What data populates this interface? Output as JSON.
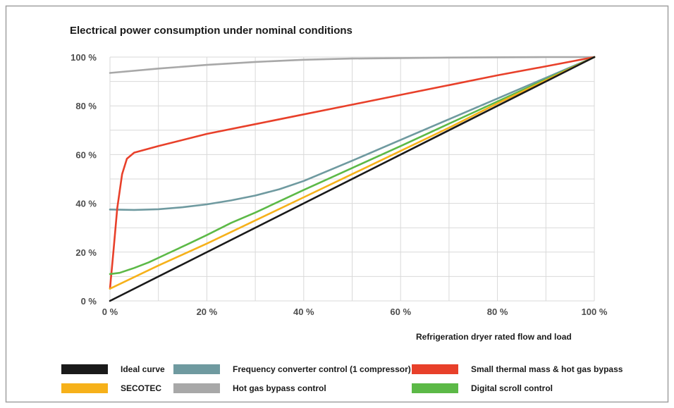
{
  "chart_data": {
    "type": "line",
    "title": "Electrical power consumption under nominal conditions",
    "xlabel": "Refrigeration dryer rated flow and load",
    "ylabel": "",
    "xlim": [
      0,
      100
    ],
    "ylim": [
      0,
      100
    ],
    "x_ticks": [
      "0 %",
      "20 %",
      "40 %",
      "60 %",
      "80 %",
      "100 %"
    ],
    "y_ticks": [
      "0 %",
      "20 %",
      "40 %",
      "60 %",
      "80 %",
      "100 %"
    ],
    "grid": true,
    "legend_position": "bottom",
    "series": [
      {
        "name": "Ideal curve",
        "color": "#1a1a1a",
        "points": [
          [
            0,
            0
          ],
          [
            100,
            100
          ]
        ]
      },
      {
        "name": "SECOTEC",
        "color": "#f6b11a",
        "points": [
          [
            0,
            5
          ],
          [
            10,
            14.5
          ],
          [
            20,
            23.5
          ],
          [
            30,
            33
          ],
          [
            40,
            42.5
          ],
          [
            50,
            52
          ],
          [
            60,
            61.5
          ],
          [
            70,
            71
          ],
          [
            80,
            81
          ],
          [
            90,
            90.5
          ],
          [
            100,
            100
          ]
        ]
      },
      {
        "name": "Frequency converter control (1 compressor)",
        "color": "#6f9aa0",
        "points": [
          [
            0,
            37.5
          ],
          [
            5,
            37.3
          ],
          [
            10,
            37.6
          ],
          [
            15,
            38.4
          ],
          [
            20,
            39.6
          ],
          [
            25,
            41.2
          ],
          [
            30,
            43.2
          ],
          [
            35,
            45.8
          ],
          [
            40,
            49.2
          ],
          [
            50,
            57.5
          ],
          [
            60,
            66
          ],
          [
            70,
            74.5
          ],
          [
            80,
            83
          ],
          [
            90,
            91.5
          ],
          [
            100,
            100
          ]
        ]
      },
      {
        "name": "Hot gas bypass control",
        "color": "#a8a8a8",
        "points": [
          [
            0,
            93.5
          ],
          [
            10,
            95.3
          ],
          [
            20,
            96.8
          ],
          [
            30,
            98
          ],
          [
            40,
            98.9
          ],
          [
            50,
            99.4
          ],
          [
            60,
            99.6
          ],
          [
            70,
            99.8
          ],
          [
            80,
            99.9
          ],
          [
            90,
            100
          ],
          [
            100,
            100
          ]
        ]
      },
      {
        "name": "Small thermal mass & hot gas bypass",
        "color": "#e8402a",
        "points": [
          [
            0,
            5
          ],
          [
            0.7,
            20
          ],
          [
            1.5,
            38
          ],
          [
            2.5,
            52
          ],
          [
            3.5,
            58.3
          ],
          [
            5,
            60.8
          ],
          [
            10,
            63.5
          ],
          [
            20,
            68.5
          ],
          [
            30,
            72.5
          ],
          [
            40,
            76.5
          ],
          [
            50,
            80.5
          ],
          [
            60,
            84.5
          ],
          [
            70,
            88.5
          ],
          [
            80,
            92.5
          ],
          [
            90,
            96.2
          ],
          [
            100,
            100
          ]
        ]
      },
      {
        "name": "Digital scroll control",
        "color": "#5cb947",
        "points": [
          [
            0,
            11
          ],
          [
            2,
            11.5
          ],
          [
            5,
            13.5
          ],
          [
            8,
            15.8
          ],
          [
            12,
            19.5
          ],
          [
            16,
            23.2
          ],
          [
            20,
            27
          ],
          [
            25,
            32
          ],
          [
            30,
            36.2
          ],
          [
            40,
            45.5
          ],
          [
            50,
            54.5
          ],
          [
            60,
            63.5
          ],
          [
            70,
            72.7
          ],
          [
            80,
            81.8
          ],
          [
            90,
            90.9
          ],
          [
            100,
            100
          ]
        ]
      }
    ]
  }
}
